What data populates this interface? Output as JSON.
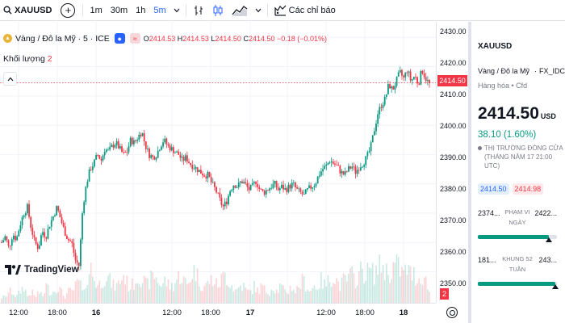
{
  "toolbar": {
    "symbol": "XAUUSD",
    "add_label": "+",
    "timeframes": [
      "1m",
      "30m",
      "1h",
      "5m"
    ],
    "active_timeframe": "5m",
    "indicators_label": "Các chỉ báo"
  },
  "legend": {
    "title": "Vàng / Đô la Mỹ · 5 · ICE",
    "o_key": "O",
    "o_val": "2414.53",
    "h_key": "H",
    "h_val": "2414.53",
    "l_key": "L",
    "l_val": "2414.50",
    "c_key": "C",
    "c_val": "2414.50",
    "change": "−0.18 (−0.01%)",
    "volume_label": "Khối lượng",
    "volume_value": "2",
    "collapse_icon": "chevron-up-icon"
  },
  "branding": {
    "logo_text": "TradingView"
  },
  "price_axis": {
    "ticks": [
      "2430.00",
      "2420.00",
      "2410.00",
      "2400.00",
      "2390.00",
      "2380.00",
      "2370.00",
      "2360.00",
      "2350.00"
    ],
    "current_price": "2414.50",
    "volume_tag": "2"
  },
  "time_axis": {
    "labels": [
      {
        "text": "12:00",
        "bold": false
      },
      {
        "text": "18:00",
        "bold": false
      },
      {
        "text": "16",
        "bold": true
      },
      {
        "text": "12:00",
        "bold": false
      },
      {
        "text": "18:00",
        "bold": false
      },
      {
        "text": "17",
        "bold": true
      },
      {
        "text": "12:00",
        "bold": false
      },
      {
        "text": "18:00",
        "bold": false
      },
      {
        "text": "18",
        "bold": true
      }
    ]
  },
  "colors": {
    "up": "#089981",
    "down": "#f23645",
    "accent": "#2962ff"
  },
  "chart_data": {
    "type": "candlestick",
    "ylim": [
      2346,
      2432
    ],
    "current_price": 2414.5,
    "price_path": [
      2360,
      2362,
      2358,
      2363,
      2361,
      2366,
      2370,
      2372,
      2365,
      2360,
      2358,
      2364,
      2362,
      2366,
      2369,
      2372,
      2368,
      2364,
      2361,
      2360,
      2354,
      2352,
      2372,
      2380,
      2385,
      2387,
      2390,
      2388,
      2392,
      2391,
      2393,
      2394,
      2392,
      2390,
      2391,
      2395,
      2394,
      2396,
      2398,
      2393,
      2390,
      2389,
      2390,
      2393,
      2395,
      2393,
      2392,
      2391,
      2390,
      2388,
      2389,
      2387,
      2386,
      2385,
      2384,
      2383,
      2383,
      2380,
      2378,
      2375,
      2372,
      2374,
      2378,
      2380,
      2379,
      2381,
      2380,
      2378,
      2379,
      2381,
      2378,
      2377,
      2378,
      2379,
      2380,
      2378,
      2379,
      2378,
      2379,
      2380,
      2378,
      2377,
      2376,
      2378,
      2379,
      2380,
      2383,
      2385,
      2386,
      2388,
      2387,
      2386,
      2384,
      2383,
      2385,
      2386,
      2384,
      2386,
      2387,
      2389,
      2392,
      2398,
      2404,
      2407,
      2409,
      2414,
      2412,
      2415,
      2418,
      2416,
      2419,
      2415,
      2417,
      2414,
      2419,
      2416,
      2414
    ],
    "volume_path": [
      1,
      1,
      2,
      2,
      1,
      2,
      3,
      1,
      2,
      1,
      2,
      1,
      3,
      2,
      2,
      3,
      2,
      1,
      2,
      2,
      3,
      4,
      1,
      5,
      6,
      4,
      3,
      4,
      5,
      4,
      3,
      3,
      4,
      5,
      3,
      3,
      4,
      5,
      4,
      3,
      4,
      5,
      4,
      3,
      4,
      3,
      3,
      4,
      5,
      4,
      3,
      5,
      6,
      4,
      3,
      3,
      4,
      4,
      3,
      4,
      5,
      4,
      3,
      2,
      3,
      3,
      2,
      2,
      3,
      2,
      3,
      2,
      2,
      3,
      2,
      3,
      2,
      2,
      3,
      2,
      3,
      4,
      3,
      2,
      3,
      3,
      4,
      3,
      4,
      5,
      4,
      3,
      4,
      4,
      5,
      4,
      5,
      6,
      5,
      6,
      5,
      6,
      7,
      6,
      5,
      6,
      7,
      6,
      5,
      6,
      5,
      5,
      4,
      5,
      4,
      2
    ]
  },
  "panel": {
    "symbol": "XAUUSD",
    "name": "Vàng / Đô la Mỹ",
    "source": "FX_IDC",
    "category": "Hàng hóa • Cfd",
    "price": "2414.50",
    "currency": "USD",
    "change": "38.10 (1.60%)",
    "status": "THỊ TRƯỜNG ĐÓNG CỬA (THÁNG NĂM 17 21:00 UTC)",
    "bid": "2414.50",
    "ask": "2414.98",
    "day_range": {
      "low": "2374...",
      "label": "PHẠM VI NGÀY",
      "high": "2422...",
      "fill": 0.9
    },
    "week52_range": {
      "low": "181...",
      "label": "KHUNG 52 TUẦN",
      "high": "243...",
      "fill": 0.98
    }
  }
}
